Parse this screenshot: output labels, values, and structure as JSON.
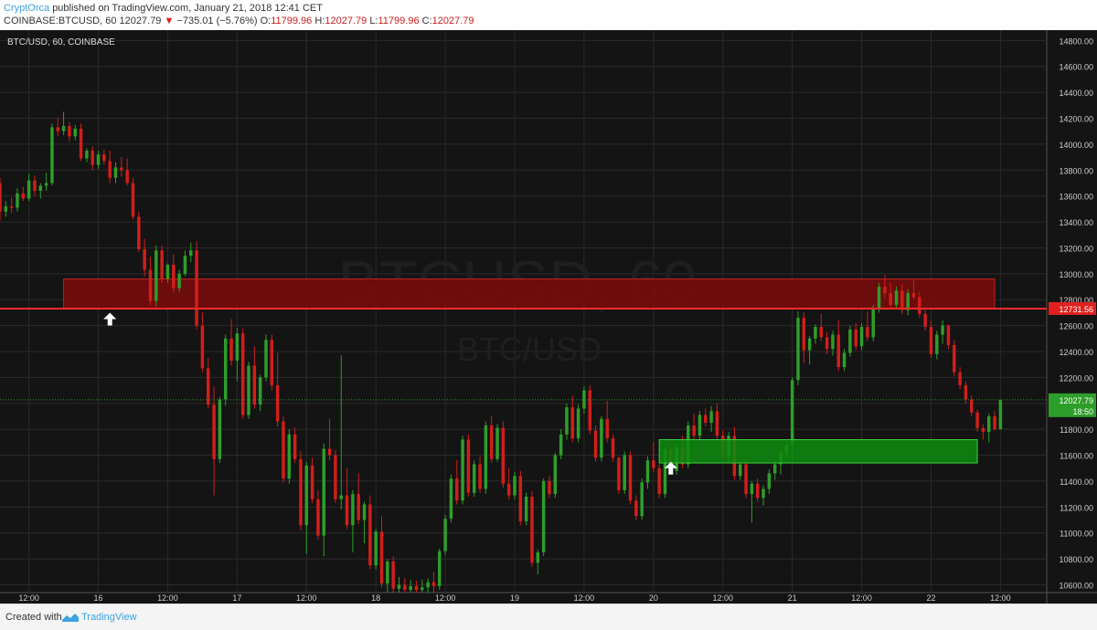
{
  "header": {
    "author": "CryptOrca",
    "published": "published on TradingView.com, January 21, 2018 12:41 CET",
    "symbol": "COINBASE:BTCUSD, 60",
    "last": "12027.79",
    "down_arrow": "▼",
    "change": "−735.01 (−5.76%)",
    "o_label": "O:",
    "o_value": "11799.96",
    "h_label": "H:",
    "h_value": "12027.79",
    "l_label": "L:",
    "l_value": "11799.96",
    "c_label": "C:",
    "c_value": "12027.79"
  },
  "footer": {
    "created": "Created with",
    "brand": "TradingView"
  },
  "colors": {
    "background": "#141414",
    "up": "#2e9e2a",
    "down": "#d01f1a",
    "resistance_fill": "#7d0a0a",
    "resistance_line": "#ff2a2a",
    "support_fill": "#0e8c0e",
    "support_line": "#38d038",
    "grid": "#2a2a2a",
    "axis_text": "#cccccc"
  },
  "chart_data": {
    "type": "candlestick",
    "title": "BTC/USD, 60, COINBASE",
    "watermark": "BTCUSD, 60",
    "watermark_sub": "BTC/USD",
    "y_ticks": [
      14800,
      14600,
      14400,
      14200,
      14000,
      13800,
      13600,
      13400,
      13200,
      13000,
      12800,
      12600,
      12400,
      12200,
      12000,
      11800,
      11600,
      11400,
      11200,
      11000,
      10800,
      10600
    ],
    "y_tick_labels": [
      "14800.00",
      "14600.00",
      "14400.00",
      "14200.00",
      "14000.00",
      "13800.00",
      "13600.00",
      "13400.00",
      "13200.00",
      "13000.00",
      "12800.00",
      "12600.00",
      "12400.00",
      "12200.00",
      "12000.00",
      "11800.00",
      "11600.00",
      "11400.00",
      "11200.00",
      "11000.00",
      "10800.00",
      "10600.00"
    ],
    "ylim": [
      10540,
      14880
    ],
    "x_labels": [
      "12:00",
      "16",
      "12:00",
      "17",
      "12:00",
      "18",
      "12:00",
      "19",
      "12:00",
      "20",
      "12:00",
      "21",
      "12:00",
      "22",
      "12:00"
    ],
    "x_label_positions_hours": [
      12,
      24,
      36,
      48,
      60,
      72,
      84,
      96,
      108,
      120,
      132,
      144,
      156,
      168,
      180
    ],
    "xlim_hours": [
      7,
      188
    ],
    "last_price": 12027.79,
    "last_price_label": "12027.79",
    "countdown": "18:50",
    "resistance_line_label": "12731.56",
    "resistance_line": 12731.56,
    "resistance_zone": {
      "from_hour": 18,
      "to_hour": 179,
      "low": 12731.56,
      "high": 12960
    },
    "support_zone": {
      "from_hour": 121,
      "to_hour": 176,
      "low": 11540,
      "high": 11720
    },
    "markers": [
      {
        "type": "up-arrow",
        "hour": 26,
        "price": 12650
      },
      {
        "type": "up-arrow",
        "hour": 123,
        "price": 11500
      }
    ],
    "candles": [
      [
        7,
        13700,
        13740,
        13410,
        13480
      ],
      [
        8,
        13480,
        13560,
        13440,
        13520
      ],
      [
        9,
        13520,
        13590,
        13470,
        13510
      ],
      [
        10,
        13510,
        13660,
        13480,
        13620
      ],
      [
        11,
        13620,
        13670,
        13560,
        13580
      ],
      [
        12,
        13580,
        13770,
        13560,
        13720
      ],
      [
        13,
        13720,
        13760,
        13600,
        13640
      ],
      [
        14,
        13640,
        13700,
        13580,
        13680
      ],
      [
        15,
        13680,
        13780,
        13640,
        13700
      ],
      [
        16,
        13700,
        14160,
        13680,
        14130
      ],
      [
        17,
        14130,
        14200,
        14060,
        14100
      ],
      [
        18,
        14100,
        14250,
        14070,
        14140
      ],
      [
        19,
        14140,
        14170,
        14020,
        14060
      ],
      [
        20,
        14060,
        14150,
        14030,
        14120
      ],
      [
        21,
        14120,
        14160,
        13870,
        13890
      ],
      [
        22,
        13890,
        13970,
        13860,
        13950
      ],
      [
        23,
        13950,
        13980,
        13800,
        13840
      ],
      [
        24,
        13840,
        13950,
        13810,
        13920
      ],
      [
        25,
        13920,
        13960,
        13840,
        13870
      ],
      [
        26,
        13870,
        13950,
        13700,
        13740
      ],
      [
        27,
        13740,
        13860,
        13700,
        13820
      ],
      [
        28,
        13820,
        13900,
        13750,
        13800
      ],
      [
        29,
        13800,
        13890,
        13680,
        13700
      ],
      [
        30,
        13700,
        13740,
        13420,
        13440
      ],
      [
        31,
        13440,
        13480,
        13170,
        13190
      ],
      [
        32,
        13190,
        13270,
        12980,
        13030
      ],
      [
        33,
        13030,
        13130,
        12760,
        12790
      ],
      [
        34,
        12790,
        13220,
        12750,
        13180
      ],
      [
        35,
        13180,
        13220,
        12930,
        12960
      ],
      [
        36,
        12960,
        13080,
        12930,
        13070
      ],
      [
        37,
        13070,
        13150,
        12860,
        12890
      ],
      [
        38,
        12890,
        13030,
        12860,
        13000
      ],
      [
        39,
        13000,
        13180,
        12980,
        13140
      ],
      [
        40,
        13140,
        13240,
        13090,
        13180
      ],
      [
        41,
        13180,
        13250,
        12570,
        12600
      ],
      [
        42,
        12600,
        12700,
        12240,
        12270
      ],
      [
        43,
        12270,
        12350,
        11960,
        11990
      ],
      [
        44,
        11990,
        12130,
        11290,
        11570
      ],
      [
        45,
        11570,
        12050,
        11540,
        12030
      ],
      [
        46,
        12030,
        12530,
        11980,
        12500
      ],
      [
        47,
        12500,
        12650,
        12290,
        12330
      ],
      [
        48,
        12330,
        12580,
        12170,
        12540
      ],
      [
        49,
        12540,
        12580,
        11880,
        11910
      ],
      [
        50,
        11910,
        12320,
        11880,
        12290
      ],
      [
        51,
        12290,
        12440,
        11960,
        11990
      ],
      [
        52,
        11990,
        12220,
        11940,
        12200
      ],
      [
        53,
        12200,
        12530,
        12170,
        12490
      ],
      [
        54,
        12490,
        12530,
        12100,
        12140
      ],
      [
        55,
        12140,
        12390,
        11820,
        11860
      ],
      [
        56,
        11860,
        11900,
        11390,
        11420
      ],
      [
        57,
        11420,
        11800,
        11380,
        11760
      ],
      [
        58,
        11760,
        11810,
        11540,
        11570
      ],
      [
        59,
        11570,
        11630,
        11020,
        11060
      ],
      [
        60,
        11060,
        11550,
        10840,
        11520
      ],
      [
        61,
        11520,
        11580,
        11230,
        11260
      ],
      [
        62,
        11260,
        11330,
        10950,
        10980
      ],
      [
        63,
        10980,
        11690,
        10820,
        11650
      ],
      [
        64,
        11650,
        11880,
        11560,
        11600
      ],
      [
        65,
        11600,
        11640,
        11230,
        11260
      ],
      [
        66,
        11260,
        12370,
        11180,
        11290
      ],
      [
        67,
        11290,
        11500,
        11030,
        11060
      ],
      [
        68,
        11060,
        11330,
        10850,
        11300
      ],
      [
        69,
        11300,
        11460,
        11070,
        11100
      ],
      [
        70,
        11100,
        11240,
        10920,
        11220
      ],
      [
        71,
        11220,
        11290,
        10720,
        10750
      ],
      [
        72,
        10750,
        11030,
        10720,
        11010
      ],
      [
        73,
        11010,
        11130,
        10580,
        10610
      ],
      [
        74,
        10610,
        10800,
        10540,
        10780
      ],
      [
        75,
        10780,
        10820,
        10540,
        10570
      ],
      [
        76,
        10570,
        10660,
        10540,
        10600
      ],
      [
        77,
        10600,
        10650,
        10540,
        10560
      ],
      [
        78,
        10560,
        10640,
        10540,
        10590
      ],
      [
        79,
        10590,
        10630,
        10540,
        10560
      ],
      [
        80,
        10560,
        10640,
        10540,
        10580
      ],
      [
        81,
        10580,
        10650,
        10540,
        10620
      ],
      [
        82,
        10620,
        10700,
        10540,
        10590
      ],
      [
        83,
        10590,
        10880,
        10560,
        10860
      ],
      [
        84,
        10860,
        11140,
        10830,
        11110
      ],
      [
        85,
        11110,
        11450,
        11080,
        11420
      ],
      [
        86,
        11420,
        11560,
        11220,
        11250
      ],
      [
        87,
        11250,
        11750,
        11220,
        11720
      ],
      [
        88,
        11720,
        11760,
        11280,
        11310
      ],
      [
        89,
        11310,
        11560,
        11280,
        11530
      ],
      [
        90,
        11530,
        11590,
        11310,
        11340
      ],
      [
        91,
        11340,
        11860,
        11300,
        11830
      ],
      [
        92,
        11830,
        11900,
        11540,
        11570
      ],
      [
        93,
        11570,
        11840,
        11550,
        11810
      ],
      [
        94,
        11810,
        11860,
        11350,
        11380
      ],
      [
        95,
        11380,
        11500,
        11260,
        11290
      ],
      [
        96,
        11290,
        11470,
        11260,
        11440
      ],
      [
        97,
        11440,
        11480,
        11060,
        11090
      ],
      [
        98,
        11090,
        11310,
        11060,
        11280
      ],
      [
        99,
        11280,
        11320,
        10740,
        10770
      ],
      [
        100,
        10770,
        10870,
        10680,
        10850
      ],
      [
        101,
        10850,
        11420,
        10820,
        11400
      ],
      [
        102,
        11400,
        11440,
        11270,
        11300
      ],
      [
        103,
        11300,
        11620,
        11270,
        11600
      ],
      [
        104,
        11600,
        11800,
        11570,
        11760
      ],
      [
        105,
        11760,
        12000,
        11720,
        11970
      ],
      [
        106,
        11970,
        12060,
        11700,
        11730
      ],
      [
        107,
        11730,
        11990,
        11700,
        11960
      ],
      [
        108,
        11960,
        12130,
        11920,
        12100
      ],
      [
        109,
        12100,
        12140,
        11760,
        11790
      ],
      [
        110,
        11790,
        11830,
        11550,
        11580
      ],
      [
        111,
        11580,
        11900,
        11550,
        11880
      ],
      [
        112,
        11880,
        12020,
        11700,
        11730
      ],
      [
        113,
        11730,
        11760,
        11550,
        11580
      ],
      [
        114,
        11580,
        11590,
        11300,
        11330
      ],
      [
        115,
        11330,
        11630,
        11300,
        11600
      ],
      [
        116,
        11600,
        11630,
        11220,
        11250
      ],
      [
        117,
        11250,
        11290,
        11100,
        11130
      ],
      [
        118,
        11130,
        11420,
        11100,
        11390
      ],
      [
        119,
        11390,
        11590,
        11340,
        11560
      ],
      [
        120,
        11560,
        11700,
        11470,
        11500
      ],
      [
        121,
        11500,
        11530,
        11270,
        11300
      ],
      [
        122,
        11300,
        11660,
        11270,
        11640
      ],
      [
        123,
        11640,
        11660,
        11450,
        11480
      ],
      [
        124,
        11480,
        11690,
        11450,
        11660
      ],
      [
        125,
        11660,
        11750,
        11500,
        11530
      ],
      [
        126,
        11530,
        11860,
        11500,
        11830
      ],
      [
        127,
        11830,
        11920,
        11720,
        11750
      ],
      [
        128,
        11750,
        11940,
        11720,
        11910
      ],
      [
        129,
        11910,
        11960,
        11820,
        11850
      ],
      [
        130,
        11850,
        11980,
        11780,
        11940
      ],
      [
        131,
        11940,
        12000,
        11720,
        11750
      ],
      [
        132,
        11750,
        11790,
        11560,
        11590
      ],
      [
        133,
        11590,
        11780,
        11540,
        11750
      ],
      [
        134,
        11750,
        11820,
        11410,
        11440
      ],
      [
        135,
        11440,
        11560,
        11410,
        11530
      ],
      [
        136,
        11530,
        11570,
        11270,
        11300
      ],
      [
        137,
        11300,
        11400,
        11080,
        11380
      ],
      [
        138,
        11380,
        11420,
        11240,
        11270
      ],
      [
        139,
        11270,
        11370,
        11210,
        11340
      ],
      [
        140,
        11340,
        11490,
        11300,
        11460
      ],
      [
        141,
        11460,
        11560,
        11410,
        11530
      ],
      [
        142,
        11530,
        11650,
        11450,
        11620
      ],
      [
        143,
        11620,
        11720,
        11580,
        11680
      ],
      [
        144,
        11680,
        12200,
        11560,
        12180
      ],
      [
        145,
        12180,
        12710,
        12140,
        12660
      ],
      [
        146,
        12660,
        12700,
        12310,
        12410
      ],
      [
        147,
        12410,
        12520,
        12300,
        12500
      ],
      [
        148,
        12500,
        12610,
        12460,
        12590
      ],
      [
        149,
        12590,
        12690,
        12480,
        12510
      ],
      [
        150,
        12510,
        12550,
        12380,
        12420
      ],
      [
        151,
        12420,
        12560,
        12370,
        12530
      ],
      [
        152,
        12530,
        12640,
        12250,
        12280
      ],
      [
        153,
        12280,
        12420,
        12250,
        12390
      ],
      [
        154,
        12390,
        12600,
        12360,
        12570
      ],
      [
        155,
        12570,
        12620,
        12410,
        12440
      ],
      [
        156,
        12440,
        12620,
        12410,
        12590
      ],
      [
        157,
        12590,
        12710,
        12480,
        12510
      ],
      [
        158,
        12510,
        12760,
        12480,
        12730
      ],
      [
        159,
        12730,
        12930,
        12700,
        12900
      ],
      [
        160,
        12900,
        12990,
        12810,
        12850
      ],
      [
        161,
        12850,
        12930,
        12730,
        12760
      ],
      [
        162,
        12760,
        12900,
        12730,
        12870
      ],
      [
        163,
        12870,
        12920,
        12690,
        12720
      ],
      [
        164,
        12720,
        12880,
        12680,
        12850
      ],
      [
        165,
        12850,
        12950,
        12800,
        12820
      ],
      [
        166,
        12820,
        12860,
        12660,
        12690
      ],
      [
        167,
        12690,
        12720,
        12560,
        12590
      ],
      [
        168,
        12590,
        12640,
        12350,
        12380
      ],
      [
        169,
        12380,
        12560,
        12340,
        12530
      ],
      [
        170,
        12530,
        12640,
        12460,
        12600
      ],
      [
        171,
        12600,
        12610,
        12420,
        12450
      ],
      [
        172,
        12450,
        12490,
        12210,
        12240
      ],
      [
        173,
        12240,
        12280,
        12110,
        12140
      ],
      [
        174,
        12140,
        12170,
        12000,
        12030
      ],
      [
        175,
        12030,
        12060,
        11900,
        11930
      ],
      [
        176,
        11930,
        11950,
        11780,
        11810
      ],
      [
        177,
        11810,
        11840,
        11720,
        11780
      ],
      [
        178,
        11780,
        11920,
        11700,
        11900
      ],
      [
        179,
        11900,
        11940,
        11790,
        11800
      ],
      [
        180,
        11800,
        12027.79,
        11799.96,
        12027.79
      ]
    ]
  }
}
